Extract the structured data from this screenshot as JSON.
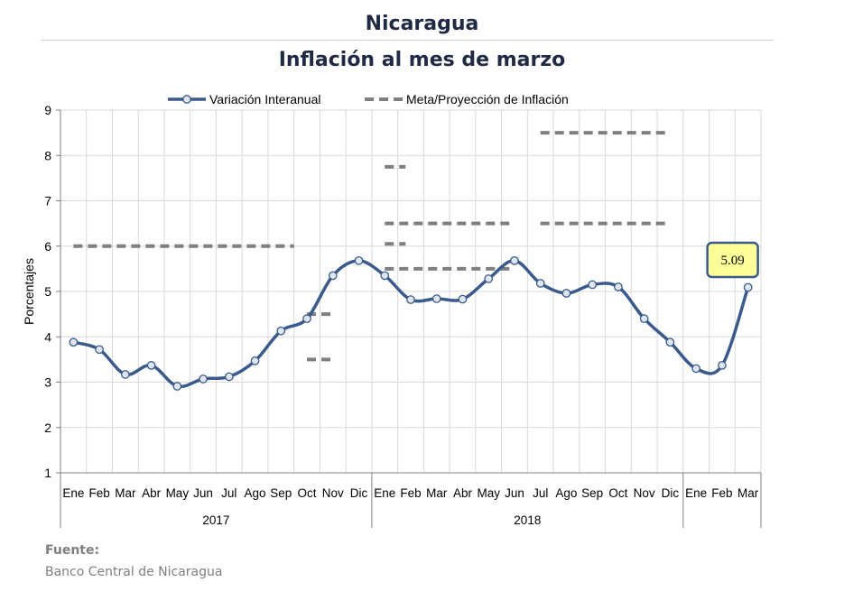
{
  "title": "Nicaragua",
  "subtitle": "Inflación al mes de marzo",
  "source_label": "Fuente:",
  "source_text": "Banco Central de Nicaragua",
  "colors": {
    "series": "#3a5a8c",
    "target": "#7f7f7f",
    "callout_fill": "#ffff99",
    "callout_border": "#3a5a8c"
  },
  "chart_data": {
    "type": "line",
    "ylabel": "Porcentajes",
    "ylim": [
      1,
      9
    ],
    "yticks": [
      1,
      2,
      3,
      4,
      5,
      6,
      7,
      8,
      9
    ],
    "grid": true,
    "legend_position": "top",
    "categories": [
      "Ene",
      "Feb",
      "Mar",
      "Abr",
      "May",
      "Jun",
      "Jul",
      "Ago",
      "Sep",
      "Oct",
      "Nov",
      "Dic",
      "Ene",
      "Feb",
      "Mar",
      "Abr",
      "May",
      "Jun",
      "Jul",
      "Ago",
      "Sep",
      "Oct",
      "Nov",
      "Dic",
      "Ene",
      "Feb",
      "Mar"
    ],
    "year_groups": [
      {
        "label": "2017",
        "start": 0,
        "end": 11
      },
      {
        "label": "2018",
        "start": 12,
        "end": 23
      },
      {
        "label": "",
        "start": 24,
        "end": 26
      }
    ],
    "series": [
      {
        "name": "Variación Interanual",
        "values": [
          3.88,
          3.72,
          3.17,
          3.37,
          2.91,
          3.07,
          3.12,
          3.47,
          4.13,
          4.4,
          5.35,
          5.68,
          5.35,
          4.82,
          4.84,
          4.83,
          5.28,
          5.68,
          5.18,
          4.96,
          5.15,
          5.1,
          4.4,
          3.88,
          3.3,
          3.37,
          5.09
        ]
      }
    ],
    "target_name": "Meta/Proyección de Inflación",
    "target_segments": [
      {
        "from": 0,
        "to": 8.5,
        "value": 6.0
      },
      {
        "from": 9,
        "to": 10,
        "value": 4.5
      },
      {
        "from": 9,
        "to": 10,
        "value": 3.5
      },
      {
        "from": 12,
        "to": 12.8,
        "value": 7.75
      },
      {
        "from": 12,
        "to": 12.8,
        "value": 6.05
      },
      {
        "from": 12,
        "to": 17,
        "value": 6.5
      },
      {
        "from": 12,
        "to": 17,
        "value": 5.5
      },
      {
        "from": 18,
        "to": 23,
        "value": 8.5
      },
      {
        "from": 18,
        "to": 23,
        "value": 6.5
      }
    ],
    "callout": {
      "index": 26,
      "text": "5.09"
    }
  }
}
